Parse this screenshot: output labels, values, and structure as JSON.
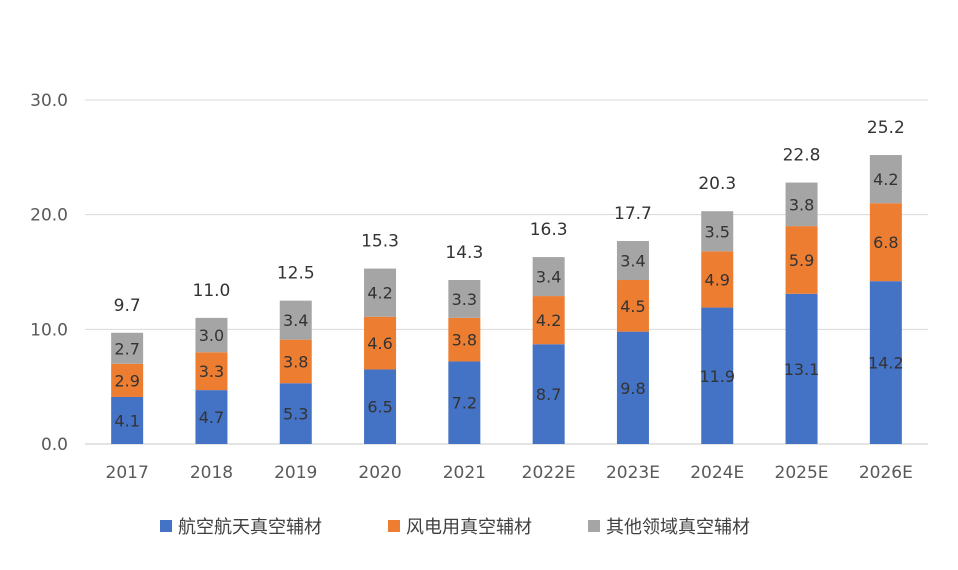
{
  "chart_data": {
    "type": "bar",
    "stacked": true,
    "categories": [
      "2017",
      "2018",
      "2019",
      "2020",
      "2021",
      "2022E",
      "2023E",
      "2024E",
      "2025E",
      "2026E"
    ],
    "series": [
      {
        "name": "航空航天真空辅材",
        "color": "#4472C4",
        "values": [
          4.1,
          4.7,
          5.3,
          6.5,
          7.2,
          8.7,
          9.8,
          11.9,
          13.1,
          14.2
        ]
      },
      {
        "name": "风电用真空辅材",
        "color": "#ED7D31",
        "values": [
          2.9,
          3.3,
          3.8,
          4.6,
          3.8,
          4.2,
          4.5,
          4.9,
          5.9,
          6.8
        ]
      },
      {
        "name": "其他领域真空辅材",
        "color": "#A5A5A5",
        "values": [
          2.7,
          3.0,
          3.4,
          4.2,
          3.3,
          3.4,
          3.4,
          3.5,
          3.8,
          4.2
        ]
      }
    ],
    "totals": [
      9.7,
      11.0,
      12.5,
      15.3,
      14.3,
      16.3,
      17.7,
      20.3,
      22.8,
      25.2
    ],
    "yticks": [
      "0.0",
      "10.0",
      "20.0",
      "30.0"
    ],
    "ylim": [
      0,
      30
    ],
    "grid": true,
    "legend": "bottom",
    "title": "",
    "xlabel": "",
    "ylabel": ""
  }
}
